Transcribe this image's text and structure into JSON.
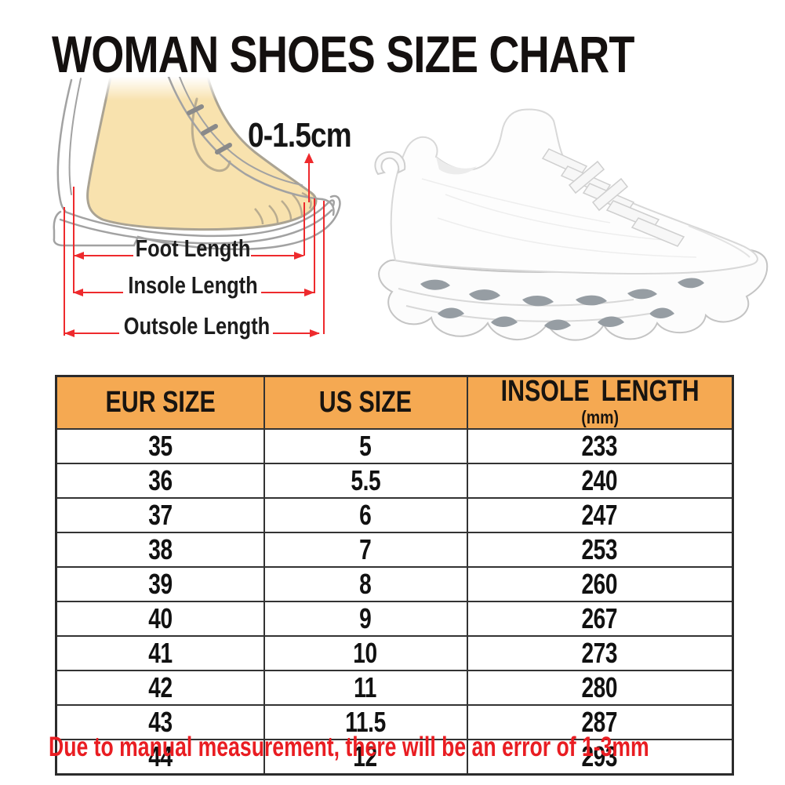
{
  "title": "WOMAN SHOES SIZE CHART",
  "diagram": {
    "toe_gap_label": "0-1.5cm",
    "foot_length_label": "Foot Length",
    "insole_length_label": "Insole Length",
    "outsole_length_label": "Outsole Length"
  },
  "table": {
    "headers": {
      "eur": "EUR SIZE",
      "us": "US SIZE",
      "insole": "INSOLE LENGTH",
      "insole_unit": "(mm)"
    }
  },
  "chart_data": {
    "type": "table",
    "title": "WOMAN SHOES SIZE CHART",
    "columns": [
      "EUR SIZE",
      "US SIZE",
      "INSOLE LENGTH (mm)"
    ],
    "rows": [
      [
        "35",
        "5",
        "233"
      ],
      [
        "36",
        "5.5",
        "240"
      ],
      [
        "37",
        "6",
        "247"
      ],
      [
        "38",
        "7",
        "253"
      ],
      [
        "39",
        "8",
        "260"
      ],
      [
        "40",
        "9",
        "267"
      ],
      [
        "41",
        "10",
        "273"
      ],
      [
        "42",
        "11",
        "280"
      ],
      [
        "43",
        "11.5",
        "287"
      ],
      [
        "44",
        "12",
        "293"
      ]
    ]
  },
  "footnote": "Due to manual measurement, there will be an error of 1-3mm",
  "colors": {
    "header_bg": "#F5A952",
    "table_border": "#333333",
    "note_red": "#E91D22",
    "measure_red": "#EE2A2D",
    "skin": "#F8E2AE"
  }
}
